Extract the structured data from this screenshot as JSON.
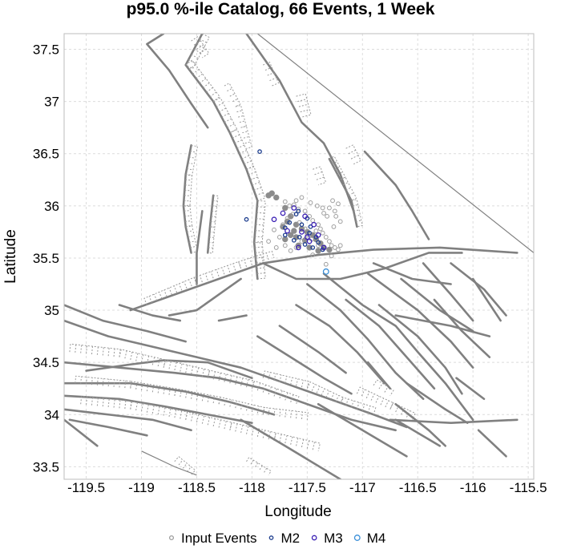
{
  "chart_data": {
    "type": "scatter",
    "title": "p95.0 %-ile Catalog, 66 Events, 1 Week",
    "xlabel": "Longitude",
    "ylabel": "Latitude",
    "xlim": [
      -119.7,
      -115.45
    ],
    "ylim": [
      33.38,
      37.65
    ],
    "grid": true,
    "legend_position": "bottom",
    "xticks": [
      {
        "value": -119.5,
        "label": "-119.5"
      },
      {
        "value": -119,
        "label": "-119"
      },
      {
        "value": -118.5,
        "label": "-118.5"
      },
      {
        "value": -118,
        "label": "-118"
      },
      {
        "value": -117.5,
        "label": "-117.5"
      },
      {
        "value": -117,
        "label": "-117"
      },
      {
        "value": -116.5,
        "label": "-116.5"
      },
      {
        "value": -116,
        "label": "-116"
      },
      {
        "value": -115.5,
        "label": "-115.5"
      }
    ],
    "yticks": [
      {
        "value": 33.5,
        "label": "33.5"
      },
      {
        "value": 34,
        "label": "34"
      },
      {
        "value": 34.5,
        "label": "34.5"
      },
      {
        "value": 35,
        "label": "35"
      },
      {
        "value": 35.5,
        "label": "35.5"
      },
      {
        "value": 36,
        "label": "36"
      },
      {
        "value": 36.5,
        "label": "36.5"
      },
      {
        "value": 37,
        "label": "37"
      },
      {
        "value": 37.5,
        "label": "37.5"
      }
    ],
    "colors": {
      "input": "#9e9e9e",
      "M2": "#1f3f8f",
      "M3": "#3a1fb4",
      "M4": "#3a8fd8",
      "faults": "#808080"
    },
    "series": [
      {
        "name": "Input Events",
        "marker": "circle-open",
        "color": "#9e9e9e",
        "points": [
          [
            -117.55,
            36.08
          ],
          [
            -117.62,
            36.01
          ],
          [
            -117.58,
            35.97
          ],
          [
            -117.52,
            35.95
          ],
          [
            -117.48,
            35.9
          ],
          [
            -117.45,
            35.86
          ],
          [
            -117.4,
            35.82
          ],
          [
            -117.38,
            35.78
          ],
          [
            -117.36,
            35.74
          ],
          [
            -117.33,
            35.7
          ],
          [
            -117.3,
            35.66
          ],
          [
            -117.28,
            35.62
          ],
          [
            -117.25,
            35.6
          ],
          [
            -117.22,
            35.58
          ],
          [
            -117.2,
            35.62
          ],
          [
            -117.35,
            35.93
          ],
          [
            -117.3,
            35.98
          ],
          [
            -117.25,
            35.95
          ],
          [
            -117.27,
            36.05
          ],
          [
            -117.22,
            36.02
          ],
          [
            -117.32,
            35.9
          ],
          [
            -117.42,
            35.76
          ],
          [
            -117.5,
            35.72
          ],
          [
            -117.55,
            35.66
          ],
          [
            -117.6,
            35.6
          ],
          [
            -117.65,
            35.57
          ],
          [
            -117.7,
            35.62
          ],
          [
            -117.75,
            35.7
          ],
          [
            -117.8,
            35.77
          ],
          [
            -117.72,
            35.82
          ],
          [
            -117.68,
            35.88
          ],
          [
            -117.63,
            35.92
          ],
          [
            -117.66,
            36.0
          ],
          [
            -117.7,
            36.04
          ],
          [
            -117.6,
            36.05
          ],
          [
            -117.45,
            35.53
          ],
          [
            -117.33,
            35.44
          ],
          [
            -117.28,
            35.52
          ],
          [
            -117.4,
            35.62
          ],
          [
            -117.46,
            35.68
          ],
          [
            -117.52,
            35.78
          ],
          [
            -117.57,
            35.84
          ],
          [
            -117.24,
            35.9
          ],
          [
            -117.2,
            35.85
          ],
          [
            -117.26,
            35.8
          ],
          [
            -117.36,
            35.98
          ],
          [
            -117.41,
            36.0
          ],
          [
            -117.47,
            36.03
          ],
          [
            -117.78,
            35.6
          ],
          [
            -117.85,
            35.66
          ]
        ]
      },
      {
        "name": "M2",
        "marker": "circle-open",
        "color": "#1f3f8f",
        "points": [
          [
            -117.93,
            36.52
          ],
          [
            -118.05,
            35.87
          ],
          [
            -117.7,
            35.79
          ],
          [
            -117.6,
            35.92
          ],
          [
            -117.55,
            35.82
          ],
          [
            -117.48,
            35.74
          ],
          [
            -117.42,
            35.7
          ],
          [
            -117.4,
            35.65
          ],
          [
            -117.47,
            35.8
          ],
          [
            -117.62,
            35.67
          ],
          [
            -117.7,
            35.72
          ],
          [
            -117.52,
            35.63
          ],
          [
            -117.36,
            35.58
          ],
          [
            -117.58,
            35.95
          ],
          [
            -117.45,
            35.6
          ],
          [
            -117.66,
            35.84
          ],
          [
            -117.5,
            35.88
          ],
          [
            -117.57,
            35.7
          ]
        ]
      },
      {
        "name": "M3",
        "marker": "circle-open",
        "color": "#3a1fb4",
        "points": [
          [
            -117.8,
            35.87
          ],
          [
            -117.72,
            35.93
          ],
          [
            -117.62,
            35.98
          ],
          [
            -117.52,
            35.9
          ],
          [
            -117.44,
            35.82
          ],
          [
            -117.5,
            35.7
          ],
          [
            -117.4,
            35.72
          ],
          [
            -117.48,
            35.66
          ],
          [
            -117.58,
            35.6
          ],
          [
            -117.68,
            35.76
          ],
          [
            -117.35,
            35.6
          ],
          [
            -117.55,
            35.75
          ]
        ]
      },
      {
        "name": "M4",
        "marker": "circle-open",
        "color": "#3a8fd8",
        "points": [
          [
            -117.33,
            35.37
          ]
        ]
      }
    ]
  }
}
